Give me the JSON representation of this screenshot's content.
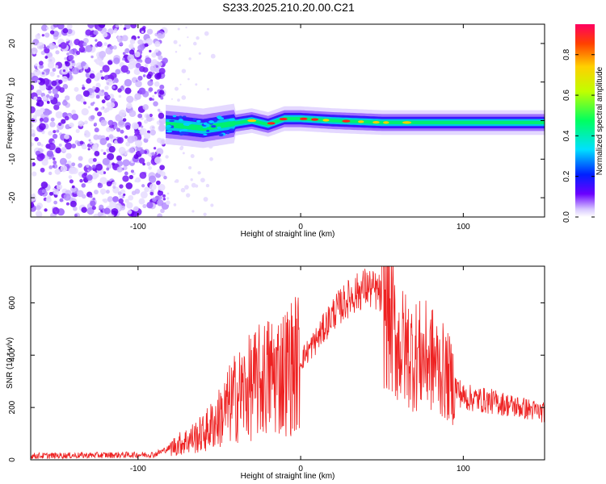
{
  "title": "S233.2025.210.20.00.C21",
  "chart_data": [
    {
      "type": "heatmap",
      "xlabel": "Height of straight line (km)",
      "ylabel": "Frequency (Hz)",
      "xlim": [
        -166,
        150
      ],
      "ylim": [
        -25,
        25
      ],
      "xticks": [
        -100,
        0,
        100
      ],
      "yticks": [
        -20,
        -10,
        0,
        10,
        20
      ],
      "colorbar": {
        "label": "Normalized spectral amplitude",
        "range": [
          0,
          0.95
        ],
        "ticks": [
          0.0,
          0.2,
          0.4,
          0.6,
          0.8
        ]
      },
      "features": {
        "noise_region_x": [
          -166,
          -83
        ],
        "carrier_ridge": [
          {
            "x": -83,
            "y": -1.0
          },
          {
            "x": -70,
            "y": -1.5
          },
          {
            "x": -60,
            "y": -2.0
          },
          {
            "x": -45,
            "y": -1.0
          },
          {
            "x": -30,
            "y": 0.0
          },
          {
            "x": -20,
            "y": -1.0
          },
          {
            "x": -10,
            "y": 0.5
          },
          {
            "x": 0,
            "y": 0.5
          },
          {
            "x": 20,
            "y": 0.0
          },
          {
            "x": 50,
            "y": -0.5
          },
          {
            "x": 80,
            "y": -0.5
          },
          {
            "x": 150,
            "y": -0.5
          }
        ]
      }
    },
    {
      "type": "line",
      "xlabel": "Height of straight line (km)",
      "ylabel": "SNR (10 * v/v)",
      "xlim": [
        -166,
        150
      ],
      "ylim": [
        0,
        740
      ],
      "xticks": [
        -100,
        0,
        100
      ],
      "yticks": [
        0,
        200,
        400,
        600
      ],
      "line_color": "#ee2222",
      "envelope": [
        {
          "x": -166,
          "y": 15
        },
        {
          "x": -120,
          "y": 18
        },
        {
          "x": -90,
          "y": 20
        },
        {
          "x": -75,
          "y": 60
        },
        {
          "x": -60,
          "y": 100
        },
        {
          "x": -50,
          "y": 160
        },
        {
          "x": -40,
          "y": 240
        },
        {
          "x": -30,
          "y": 280
        },
        {
          "x": -20,
          "y": 320
        },
        {
          "x": -10,
          "y": 340
        },
        {
          "x": 0,
          "y": 380
        },
        {
          "x": 10,
          "y": 460
        },
        {
          "x": 20,
          "y": 560
        },
        {
          "x": 30,
          "y": 620
        },
        {
          "x": 40,
          "y": 660
        },
        {
          "x": 48,
          "y": 640
        },
        {
          "x": 55,
          "y": 540
        },
        {
          "x": 60,
          "y": 440
        },
        {
          "x": 70,
          "y": 400
        },
        {
          "x": 80,
          "y": 390
        },
        {
          "x": 90,
          "y": 320
        },
        {
          "x": 100,
          "y": 240
        },
        {
          "x": 120,
          "y": 220
        },
        {
          "x": 150,
          "y": 180
        }
      ]
    }
  ]
}
